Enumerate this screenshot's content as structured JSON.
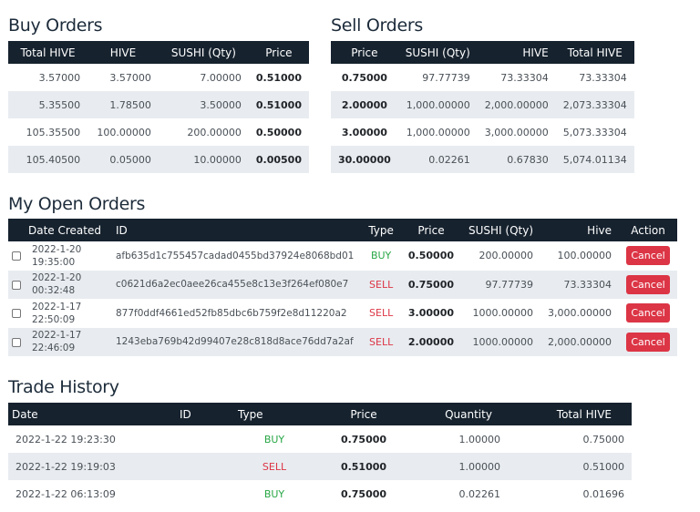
{
  "buy_orders": {
    "title": "Buy Orders",
    "headers": [
      "Total HIVE",
      "HIVE",
      "SUSHI (Qty)",
      "Price"
    ],
    "rows": [
      [
        "3.57000",
        "3.57000",
        "7.00000",
        "0.51000"
      ],
      [
        "5.35500",
        "1.78500",
        "3.50000",
        "0.51000"
      ],
      [
        "105.35500",
        "100.00000",
        "200.00000",
        "0.50000"
      ],
      [
        "105.40500",
        "0.05000",
        "10.00000",
        "0.00500"
      ]
    ]
  },
  "sell_orders": {
    "title": "Sell Orders",
    "headers": [
      "Price",
      "SUSHI (Qty)",
      "HIVE",
      "Total HIVE"
    ],
    "rows": [
      [
        "0.75000",
        "97.77739",
        "73.33304",
        "73.33304"
      ],
      [
        "2.00000",
        "1,000.00000",
        "2,000.00000",
        "2,073.33304"
      ],
      [
        "3.00000",
        "1,000.00000",
        "3,000.00000",
        "5,073.33304"
      ],
      [
        "30.00000",
        "0.02261",
        "0.67830",
        "5,074.01134"
      ]
    ]
  },
  "open_orders": {
    "title": "My Open Orders",
    "headers": [
      "",
      "Date Created",
      "ID",
      "Type",
      "Price",
      "SUSHI (Qty)",
      "Hive",
      "Action"
    ],
    "cancel_label": "Cancel",
    "rows": [
      {
        "date": "2022-1-20",
        "time": "19:35:00",
        "id": "afb635d1c755457cadad0455bd37924e8068bd01",
        "type": "BUY",
        "price": "0.50000",
        "qty": "200.00000",
        "hive": "100.00000"
      },
      {
        "date": "2022-1-20",
        "time": "00:32:48",
        "id": "c0621d6a2ec0aee26ca455e8c13e3f264ef080e7",
        "type": "SELL",
        "price": "0.75000",
        "qty": "97.77739",
        "hive": "73.33304"
      },
      {
        "date": "2022-1-17",
        "time": "22:50:09",
        "id": "877f0ddf4661ed52fb85dbc6b759f2e8d11220a2",
        "type": "SELL",
        "price": "3.00000",
        "qty": "1000.00000",
        "hive": "3,000.00000"
      },
      {
        "date": "2022-1-17",
        "time": "22:46:09",
        "id": "1243eba769b42d99407e28c818d8ace76dd7a2af",
        "type": "SELL",
        "price": "2.00000",
        "qty": "1000.00000",
        "hive": "2,000.00000"
      }
    ]
  },
  "trade_history": {
    "title": "Trade History",
    "headers": [
      "Date",
      "ID",
      "Type",
      "Price",
      "Quantity",
      "Total HIVE"
    ],
    "rows": [
      {
        "date": "2022-1-22 19:23:30",
        "id": "",
        "type": "BUY",
        "price": "0.75000",
        "qty": "1.00000",
        "total": "0.75000"
      },
      {
        "date": "2022-1-22 19:19:03",
        "id": "",
        "type": "SELL",
        "price": "0.51000",
        "qty": "1.00000",
        "total": "0.51000"
      },
      {
        "date": "2022-1-22 06:13:09",
        "id": "",
        "type": "BUY",
        "price": "0.75000",
        "qty": "0.02261",
        "total": "0.01696"
      }
    ]
  },
  "colors": {
    "header_bg": "#16222e",
    "stripe": "#e8ecf0",
    "buy": "#28a745",
    "sell": "#dc3545"
  }
}
